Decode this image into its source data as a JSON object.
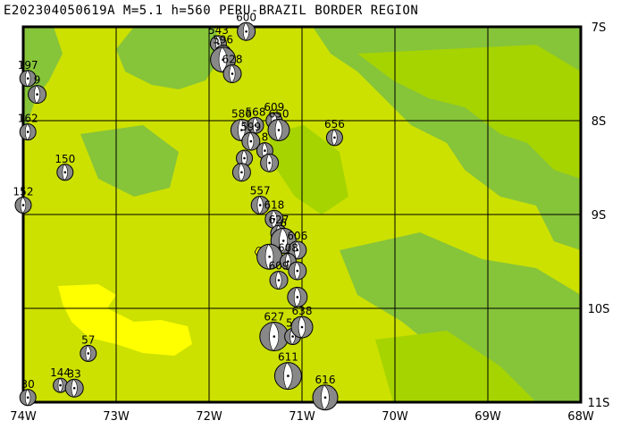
{
  "title": "E202304050619A M=5.1 h=560 PERU-BRAZIL BORDER REGION",
  "map": {
    "lon_range": [
      -74,
      -68
    ],
    "lat_range": [
      -11,
      -7
    ],
    "x_ticks": [
      {
        "lon": -74,
        "label": "74W"
      },
      {
        "lon": -73,
        "label": "73W"
      },
      {
        "lon": -72,
        "label": "72W"
      },
      {
        "lon": -71,
        "label": "71W"
      },
      {
        "lon": -70,
        "label": "70W"
      },
      {
        "lon": -69,
        "label": "69W"
      },
      {
        "lon": -68,
        "label": "68W"
      }
    ],
    "y_ticks": [
      {
        "lat": -7,
        "label": "7S"
      },
      {
        "lat": -8,
        "label": "8S"
      },
      {
        "lat": -9,
        "label": "9S"
      },
      {
        "lat": -10,
        "label": "10S"
      },
      {
        "lat": -11,
        "label": "11S"
      }
    ],
    "colors": {
      "lowland": "#cce100",
      "midland": "#a6d400",
      "upland": "#86c43a",
      "river_plain": "#ffff00",
      "grid": "#000000",
      "beachball_fill": "#888888",
      "epicenter": "#ffff00"
    },
    "epicenter": {
      "lon": -71.45,
      "lat": -9.4
    },
    "events": [
      {
        "lon": -71.6,
        "lat": -7.05,
        "r": 10,
        "label": "600"
      },
      {
        "lon": -71.9,
        "lat": -7.18,
        "r": 9,
        "label": "543"
      },
      {
        "lon": -71.85,
        "lat": -7.28,
        "r": 9,
        "label": "596"
      },
      {
        "lon": -71.85,
        "lat": -7.35,
        "r": 14,
        "label": ""
      },
      {
        "lon": -71.75,
        "lat": -7.5,
        "r": 10,
        "label": "628"
      },
      {
        "lon": -73.95,
        "lat": -7.55,
        "r": 9,
        "label": "197"
      },
      {
        "lon": -73.85,
        "lat": -7.72,
        "r": 10,
        "label": "9"
      },
      {
        "lon": -73.95,
        "lat": -8.12,
        "r": 9,
        "label": "162"
      },
      {
        "lon": -71.65,
        "lat": -8.1,
        "r": 12,
        "label": "586"
      },
      {
        "lon": -71.5,
        "lat": -8.05,
        "r": 9,
        "label": "568"
      },
      {
        "lon": -71.3,
        "lat": -8.0,
        "r": 9,
        "label": "609"
      },
      {
        "lon": -71.25,
        "lat": -8.1,
        "r": 12,
        "label": "650"
      },
      {
        "lon": -71.55,
        "lat": -8.22,
        "r": 10,
        "label": "599"
      },
      {
        "lon": -71.4,
        "lat": -8.32,
        "r": 9,
        "label": "8"
      },
      {
        "lon": -71.62,
        "lat": -8.4,
        "r": 9,
        "label": ""
      },
      {
        "lon": -71.35,
        "lat": -8.45,
        "r": 10,
        "label": ""
      },
      {
        "lon": -71.65,
        "lat": -8.55,
        "r": 10,
        "label": ""
      },
      {
        "lon": -70.65,
        "lat": -8.18,
        "r": 9,
        "label": "656"
      },
      {
        "lon": -73.55,
        "lat": -8.55,
        "r": 9,
        "label": "150"
      },
      {
        "lon": -74.0,
        "lat": -8.9,
        "r": 9,
        "label": "152"
      },
      {
        "lon": -71.45,
        "lat": -8.9,
        "r": 10,
        "label": "557"
      },
      {
        "lon": -71.3,
        "lat": -9.05,
        "r": 10,
        "label": "618"
      },
      {
        "lon": -71.25,
        "lat": -9.2,
        "r": 9,
        "label": "627"
      },
      {
        "lon": -71.2,
        "lat": -9.28,
        "r": 14,
        "label": "6"
      },
      {
        "lon": -71.05,
        "lat": -9.38,
        "r": 10,
        "label": "606"
      },
      {
        "lon": -71.35,
        "lat": -9.45,
        "r": 14,
        "label": ""
      },
      {
        "lon": -71.15,
        "lat": -9.5,
        "r": 9,
        "label": "608"
      },
      {
        "lon": -71.05,
        "lat": -9.6,
        "r": 10,
        "label": ""
      },
      {
        "lon": -71.25,
        "lat": -9.7,
        "r": 10,
        "label": "609"
      },
      {
        "lon": -71.05,
        "lat": -9.88,
        "r": 11,
        "label": ""
      },
      {
        "lon": -71.3,
        "lat": -10.3,
        "r": 16,
        "label": "627"
      },
      {
        "lon": -71.1,
        "lat": -10.3,
        "r": 9,
        "label": "57"
      },
      {
        "lon": -71.0,
        "lat": -10.2,
        "r": 12,
        "label": "638"
      },
      {
        "lon": -73.3,
        "lat": -10.48,
        "r": 9,
        "label": "57"
      },
      {
        "lon": -71.15,
        "lat": -10.72,
        "r": 15,
        "label": "611"
      },
      {
        "lon": -73.6,
        "lat": -10.82,
        "r": 8,
        "label": "144"
      },
      {
        "lon": -73.45,
        "lat": -10.85,
        "r": 10,
        "label": "33"
      },
      {
        "lon": -70.75,
        "lat": -10.95,
        "r": 14,
        "label": "616"
      },
      {
        "lon": -73.95,
        "lat": -10.95,
        "r": 9,
        "label": "30"
      }
    ]
  }
}
